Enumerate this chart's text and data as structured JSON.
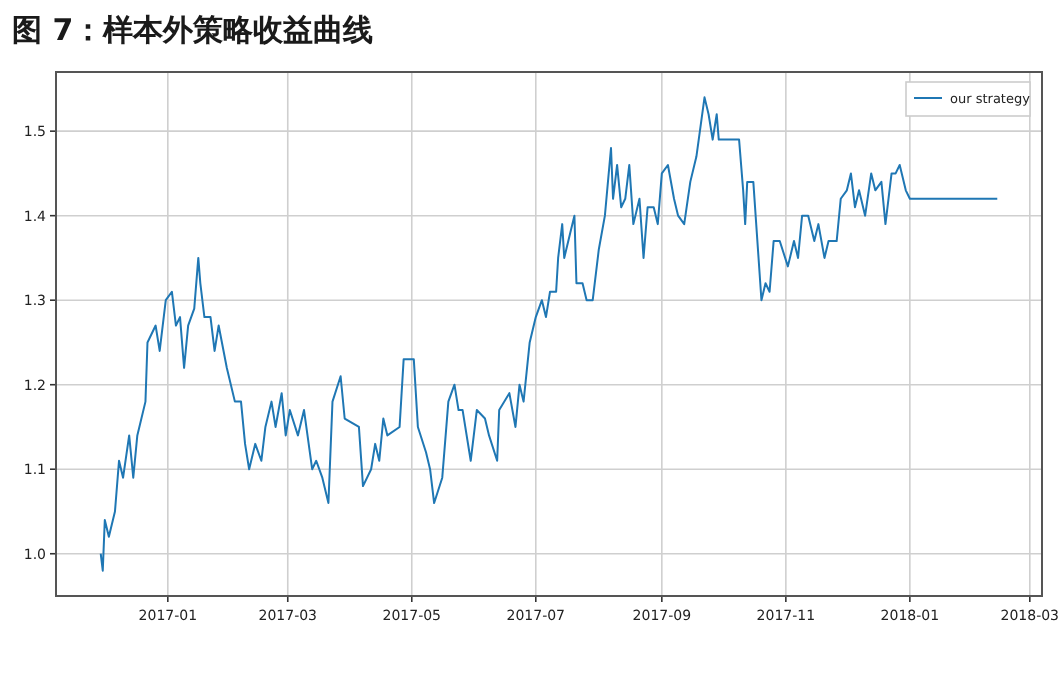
{
  "chart_data": {
    "type": "line",
    "title": "图 7：样本外策略收益曲线",
    "xlim": [
      "2016-11-07",
      "2018-03-07"
    ],
    "ylim": [
      0.95,
      1.57
    ],
    "xticks": [
      {
        "value": "2017-01",
        "label": "2017-01"
      },
      {
        "value": "2017-03",
        "label": "2017-03"
      },
      {
        "value": "2017-05",
        "label": "2017-05"
      },
      {
        "value": "2017-07",
        "label": "2017-07"
      },
      {
        "value": "2017-09",
        "label": "2017-09"
      },
      {
        "value": "2017-11",
        "label": "2017-11"
      },
      {
        "value": "2018-01",
        "label": "2018-01"
      },
      {
        "value": "2018-03",
        "label": "2018-03"
      }
    ],
    "yticks": [
      {
        "value": 1.0,
        "label": "1.0"
      },
      {
        "value": 1.1,
        "label": "1.1"
      },
      {
        "value": 1.2,
        "label": "1.2"
      },
      {
        "value": 1.3,
        "label": "1.3"
      },
      {
        "value": 1.4,
        "label": "1.4"
      },
      {
        "value": 1.5,
        "label": "1.5"
      }
    ],
    "grid": true,
    "legend": "top right",
    "series": [
      {
        "name": "our strategy",
        "color": "#1f77b4",
        "x": [
          "2016-11-29",
          "2016-11-30",
          "2016-12-01",
          "2016-12-03",
          "2016-12-06",
          "2016-12-08",
          "2016-12-10",
          "2016-12-13",
          "2016-12-15",
          "2016-12-17",
          "2016-12-21",
          "2016-12-22",
          "2016-12-26",
          "2016-12-28",
          "2016-12-31",
          "2017-01-03",
          "2017-01-05",
          "2017-01-07",
          "2017-01-09",
          "2017-01-11",
          "2017-01-14",
          "2017-01-16",
          "2017-01-17",
          "2017-01-19",
          "2017-01-22",
          "2017-01-24",
          "2017-01-26",
          "2017-01-30",
          "2017-02-03",
          "2017-02-06",
          "2017-02-08",
          "2017-02-10",
          "2017-02-13",
          "2017-02-16",
          "2017-02-18",
          "2017-02-21",
          "2017-02-23",
          "2017-02-26",
          "2017-02-28",
          "2017-03-02",
          "2017-03-06",
          "2017-03-09",
          "2017-03-13",
          "2017-03-15",
          "2017-03-18",
          "2017-03-21",
          "2017-03-23",
          "2017-03-27",
          "2017-03-29",
          "2017-04-05",
          "2017-04-07",
          "2017-04-11",
          "2017-04-13",
          "2017-04-15",
          "2017-04-17",
          "2017-04-19",
          "2017-04-25",
          "2017-04-27",
          "2017-05-02",
          "2017-05-04",
          "2017-05-08",
          "2017-05-10",
          "2017-05-12",
          "2017-05-16",
          "2017-05-19",
          "2017-05-22",
          "2017-05-24",
          "2017-05-26",
          "2017-05-30",
          "2017-06-02",
          "2017-06-06",
          "2017-06-08",
          "2017-06-12",
          "2017-06-13",
          "2017-06-18",
          "2017-06-21",
          "2017-06-23",
          "2017-06-25",
          "2017-06-28",
          "2017-07-01",
          "2017-07-04",
          "2017-07-06",
          "2017-07-08",
          "2017-07-11",
          "2017-07-12",
          "2017-07-14",
          "2017-07-15",
          "2017-07-18",
          "2017-07-20",
          "2017-07-21",
          "2017-07-24",
          "2017-07-26",
          "2017-07-29",
          "2017-08-01",
          "2017-08-04",
          "2017-08-07",
          "2017-08-08",
          "2017-08-10",
          "2017-08-12",
          "2017-08-14",
          "2017-08-16",
          "2017-08-18",
          "2017-08-21",
          "2017-08-23",
          "2017-08-25",
          "2017-08-28",
          "2017-08-30",
          "2017-09-01",
          "2017-09-04",
          "2017-09-07",
          "2017-09-09",
          "2017-09-12",
          "2017-09-15",
          "2017-09-18",
          "2017-09-22",
          "2017-09-24",
          "2017-09-26",
          "2017-09-28",
          "2017-09-29",
          "2017-10-09",
          "2017-10-11",
          "2017-10-12",
          "2017-10-13",
          "2017-10-16",
          "2017-10-20",
          "2017-10-22",
          "2017-10-24",
          "2017-10-26",
          "2017-10-29",
          "2017-11-02",
          "2017-11-05",
          "2017-11-07",
          "2017-11-09",
          "2017-11-12",
          "2017-11-15",
          "2017-11-17",
          "2017-11-20",
          "2017-11-22",
          "2017-11-26",
          "2017-11-28",
          "2017-12-01",
          "2017-12-03",
          "2017-12-05",
          "2017-12-07",
          "2017-12-10",
          "2017-12-13",
          "2017-12-15",
          "2017-12-18",
          "2017-12-20",
          "2017-12-23",
          "2017-12-25",
          "2017-12-27",
          "2017-12-30",
          "2018-01-01",
          "2018-02-13"
        ],
        "values": [
          1.0,
          0.98,
          1.04,
          1.02,
          1.05,
          1.11,
          1.09,
          1.14,
          1.09,
          1.14,
          1.18,
          1.25,
          1.27,
          1.24,
          1.3,
          1.31,
          1.27,
          1.28,
          1.22,
          1.27,
          1.29,
          1.35,
          1.32,
          1.28,
          1.28,
          1.24,
          1.27,
          1.22,
          1.18,
          1.18,
          1.13,
          1.1,
          1.13,
          1.11,
          1.15,
          1.18,
          1.15,
          1.19,
          1.14,
          1.17,
          1.14,
          1.17,
          1.1,
          1.11,
          1.09,
          1.06,
          1.18,
          1.21,
          1.16,
          1.15,
          1.08,
          1.1,
          1.13,
          1.11,
          1.16,
          1.14,
          1.15,
          1.23,
          1.23,
          1.15,
          1.12,
          1.1,
          1.06,
          1.09,
          1.18,
          1.2,
          1.17,
          1.17,
          1.11,
          1.17,
          1.16,
          1.14,
          1.11,
          1.17,
          1.19,
          1.15,
          1.2,
          1.18,
          1.25,
          1.28,
          1.3,
          1.28,
          1.31,
          1.31,
          1.35,
          1.39,
          1.35,
          1.38,
          1.4,
          1.32,
          1.32,
          1.3,
          1.3,
          1.36,
          1.4,
          1.48,
          1.42,
          1.46,
          1.41,
          1.42,
          1.46,
          1.39,
          1.42,
          1.35,
          1.41,
          1.41,
          1.39,
          1.45,
          1.46,
          1.42,
          1.4,
          1.39,
          1.44,
          1.47,
          1.54,
          1.52,
          1.49,
          1.52,
          1.49,
          1.49,
          1.43,
          1.39,
          1.44,
          1.44,
          1.3,
          1.32,
          1.31,
          1.37,
          1.37,
          1.34,
          1.37,
          1.35,
          1.4,
          1.4,
          1.37,
          1.39,
          1.35,
          1.37,
          1.37,
          1.42,
          1.43,
          1.45,
          1.41,
          1.43,
          1.4,
          1.45,
          1.43,
          1.44,
          1.39,
          1.45,
          1.45,
          1.46,
          1.43,
          1.42,
          1.42
        ]
      }
    ]
  }
}
